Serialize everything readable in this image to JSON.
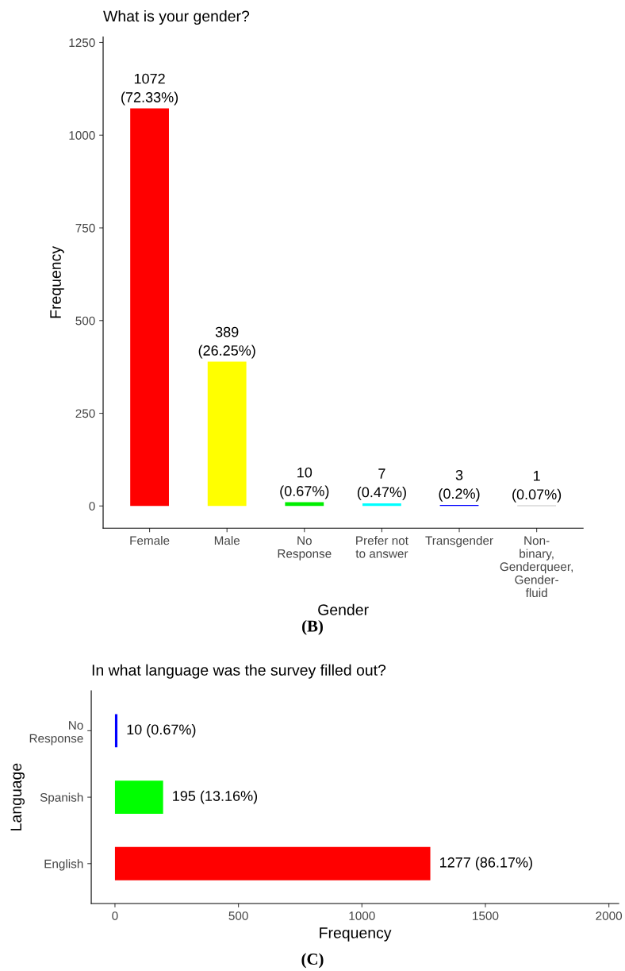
{
  "chart_data": [
    {
      "type": "bar",
      "title": "What is your gender?",
      "xlabel": "Gender",
      "ylabel": "Frequency",
      "categories": [
        "Female",
        "Male",
        "No\nResponse",
        "Prefer not\nto answer",
        "Transgender",
        "Non-\nbinary,\nGenderqueer,\nGender-\nfluid"
      ],
      "values": [
        1072,
        389,
        10,
        7,
        3,
        1
      ],
      "colors": [
        "#ff0000",
        "#ffff00",
        "#00ee00",
        "#00ffff",
        "#0000ff",
        "#888888"
      ],
      "value_labels": [
        "1072\n(72.33%)",
        "389\n(26.25%)",
        "10\n(0.67%)",
        "7\n(0.47%)",
        "3\n(0.2%)",
        "1\n(0.07%)"
      ],
      "ylim": [
        -60,
        1265
      ],
      "yticks": [
        0,
        250,
        500,
        750,
        1000,
        1250
      ],
      "grid": false,
      "legend": false,
      "annotations": [
        "(B)"
      ]
    },
    {
      "type": "bar",
      "orientation": "horizontal",
      "title": "In what language was the survey filled out?",
      "xlabel": "Frequency",
      "ylabel": "Language",
      "categories": [
        "No\nResponse",
        "Spanish",
        "English"
      ],
      "values": [
        10,
        195,
        1277
      ],
      "colors": [
        "#0000ff",
        "#00ff00",
        "#ff0000"
      ],
      "value_labels": [
        "10 (0.67%)",
        "195 (13.16%)",
        "1277 (86.17%)"
      ],
      "xlim": [
        -96,
        2040
      ],
      "xticks": [
        0,
        500,
        1000,
        1500,
        2000
      ],
      "grid": false,
      "legend": false,
      "annotations": [
        "(C)"
      ]
    }
  ]
}
